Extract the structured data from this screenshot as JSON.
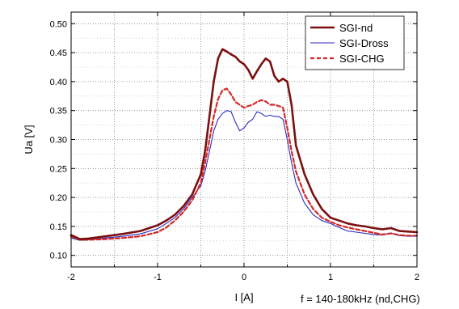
{
  "chart_data": {
    "type": "line",
    "xlabel": "I [A]",
    "ylabel": "Ua [V]",
    "xlim": [
      -2,
      2
    ],
    "ylim": [
      0.08,
      0.52
    ],
    "x_ticks": [
      -2,
      -1,
      0,
      1,
      2
    ],
    "x_tick_labels": [
      "-2",
      "-1",
      "0",
      "1",
      "2"
    ],
    "y_ticks": [
      0.1,
      0.15,
      0.2,
      0.25,
      0.3,
      0.35,
      0.4,
      0.45,
      0.5
    ],
    "y_tick_labels": [
      "0.10",
      "0.15",
      "0.20",
      "0.25",
      "0.30",
      "0.35",
      "0.40",
      "0.45",
      "0.50"
    ],
    "grid": "dotted",
    "legend_position": "top-right",
    "annotation": "f = 140-180kHz (nd,CHG)",
    "series": [
      {
        "name": "SGI-nd",
        "color": "#7b1010",
        "style": "solid-thick",
        "x": [
          -2.0,
          -1.9,
          -1.8,
          -1.6,
          -1.4,
          -1.2,
          -1.0,
          -0.9,
          -0.8,
          -0.7,
          -0.6,
          -0.5,
          -0.45,
          -0.4,
          -0.35,
          -0.3,
          -0.25,
          -0.2,
          -0.15,
          -0.1,
          -0.05,
          0.0,
          0.05,
          0.1,
          0.15,
          0.2,
          0.25,
          0.3,
          0.35,
          0.4,
          0.45,
          0.5,
          0.55,
          0.6,
          0.7,
          0.8,
          0.9,
          1.0,
          1.1,
          1.2,
          1.3,
          1.4,
          1.5,
          1.6,
          1.7,
          1.8,
          1.9,
          2.0
        ],
        "y": [
          0.135,
          0.128,
          0.129,
          0.133,
          0.137,
          0.142,
          0.152,
          0.16,
          0.17,
          0.185,
          0.205,
          0.24,
          0.28,
          0.34,
          0.4,
          0.44,
          0.456,
          0.452,
          0.447,
          0.443,
          0.435,
          0.43,
          0.42,
          0.405,
          0.418,
          0.43,
          0.44,
          0.435,
          0.41,
          0.4,
          0.405,
          0.4,
          0.36,
          0.29,
          0.24,
          0.205,
          0.18,
          0.165,
          0.16,
          0.155,
          0.152,
          0.15,
          0.147,
          0.145,
          0.147,
          0.142,
          0.141,
          0.14
        ]
      },
      {
        "name": "SGI-Dross",
        "color": "#2a2abf",
        "style": "solid-thin",
        "x": [
          -2.0,
          -1.9,
          -1.8,
          -1.6,
          -1.4,
          -1.2,
          -1.0,
          -0.9,
          -0.8,
          -0.7,
          -0.6,
          -0.5,
          -0.45,
          -0.4,
          -0.35,
          -0.3,
          -0.25,
          -0.2,
          -0.15,
          -0.1,
          -0.05,
          0.0,
          0.05,
          0.1,
          0.15,
          0.2,
          0.25,
          0.3,
          0.35,
          0.4,
          0.45,
          0.5,
          0.55,
          0.6,
          0.7,
          0.8,
          0.9,
          1.0,
          1.1,
          1.2,
          1.3,
          1.4,
          1.5,
          1.6,
          1.7,
          1.8,
          1.9,
          2.0
        ],
        "y": [
          0.13,
          0.126,
          0.127,
          0.13,
          0.133,
          0.137,
          0.146,
          0.155,
          0.165,
          0.18,
          0.2,
          0.22,
          0.245,
          0.28,
          0.315,
          0.335,
          0.345,
          0.35,
          0.348,
          0.33,
          0.315,
          0.32,
          0.33,
          0.335,
          0.348,
          0.345,
          0.34,
          0.342,
          0.34,
          0.34,
          0.335,
          0.3,
          0.26,
          0.225,
          0.19,
          0.17,
          0.16,
          0.155,
          0.148,
          0.142,
          0.14,
          0.138,
          0.136,
          0.135,
          0.138,
          0.134,
          0.133,
          0.133
        ]
      },
      {
        "name": "SGI-CHG",
        "color": "#d42828",
        "style": "dashed",
        "x": [
          -2.0,
          -1.9,
          -1.8,
          -1.6,
          -1.4,
          -1.2,
          -1.0,
          -0.9,
          -0.8,
          -0.7,
          -0.6,
          -0.5,
          -0.45,
          -0.4,
          -0.35,
          -0.3,
          -0.25,
          -0.2,
          -0.15,
          -0.1,
          -0.05,
          0.0,
          0.05,
          0.1,
          0.15,
          0.2,
          0.25,
          0.3,
          0.35,
          0.4,
          0.45,
          0.5,
          0.55,
          0.6,
          0.7,
          0.8,
          0.9,
          1.0,
          1.1,
          1.2,
          1.3,
          1.4,
          1.5,
          1.6,
          1.7,
          1.8,
          1.9,
          2.0
        ],
        "y": [
          0.133,
          0.127,
          0.127,
          0.128,
          0.13,
          0.133,
          0.14,
          0.148,
          0.16,
          0.175,
          0.195,
          0.225,
          0.26,
          0.3,
          0.34,
          0.37,
          0.385,
          0.388,
          0.378,
          0.365,
          0.36,
          0.355,
          0.358,
          0.36,
          0.365,
          0.368,
          0.366,
          0.36,
          0.36,
          0.358,
          0.355,
          0.32,
          0.28,
          0.245,
          0.205,
          0.18,
          0.165,
          0.158,
          0.152,
          0.148,
          0.145,
          0.142,
          0.139,
          0.136,
          0.138,
          0.135,
          0.134,
          0.134
        ]
      }
    ]
  }
}
